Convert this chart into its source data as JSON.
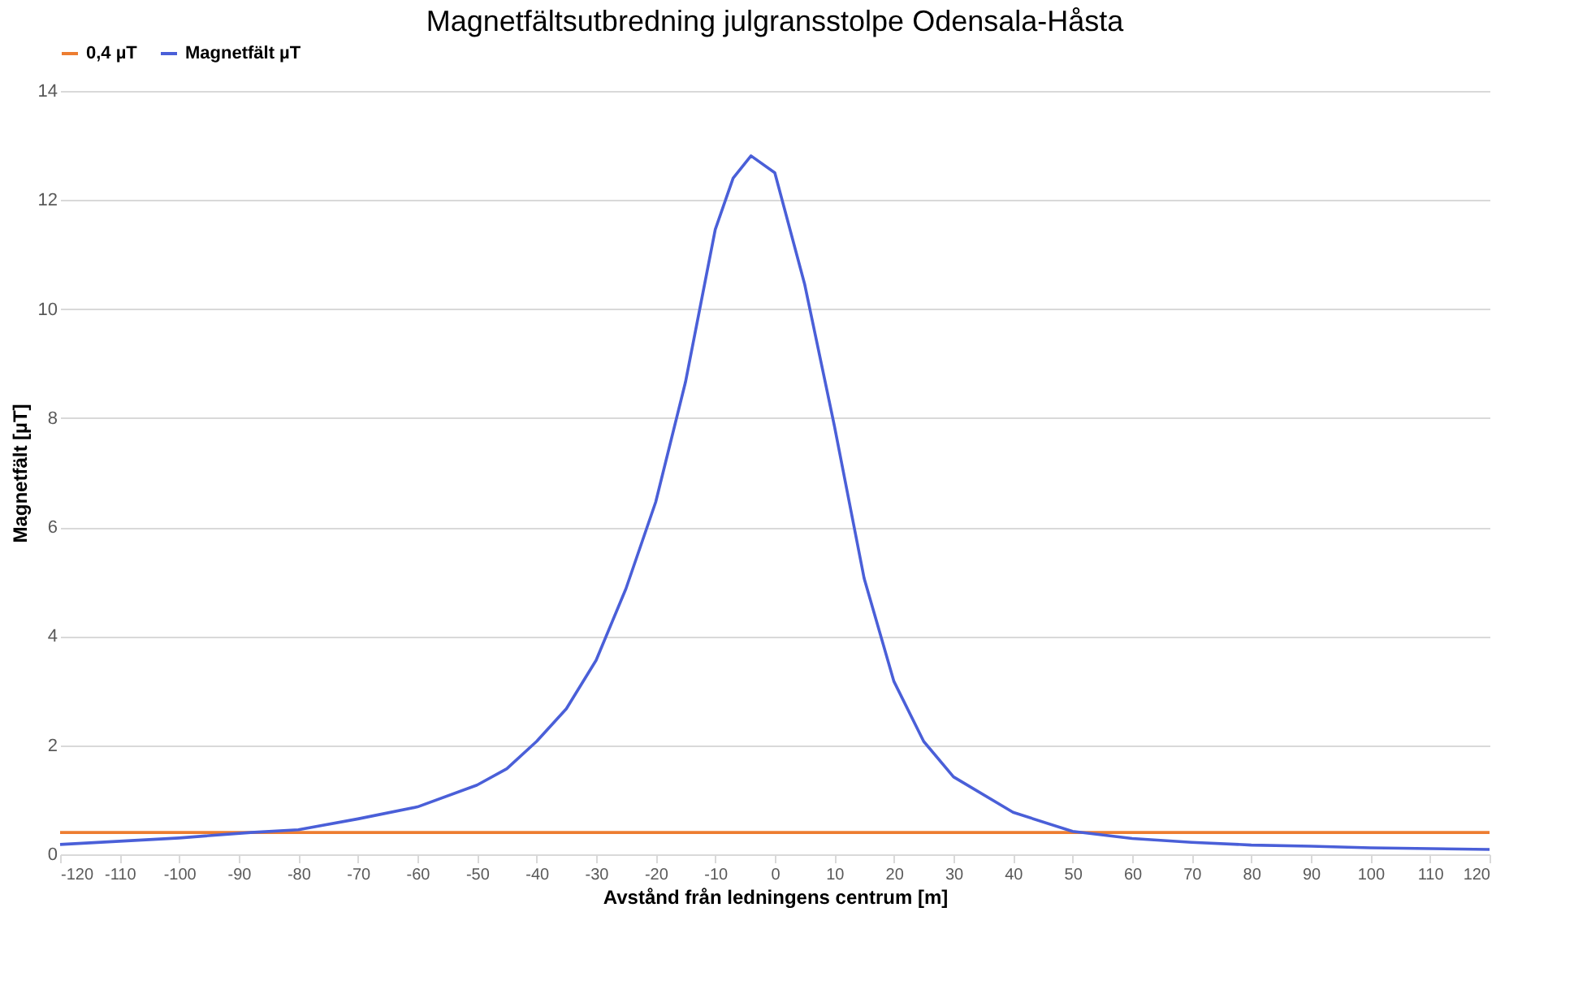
{
  "chart_data": {
    "type": "line",
    "title": "Magnetfältsutbredning julgransstolpe Odensala-Håsta",
    "xlabel": "Avstånd från ledningens centrum [m]",
    "ylabel": "Magnetfält [µT]",
    "series": [
      {
        "name": "0,4 µT",
        "color": "#ed7d31",
        "x": [
          -120,
          120
        ],
        "values": [
          0.4,
          0.4
        ]
      },
      {
        "name": "Magnetfält µT",
        "color": "#4a5fd8",
        "x": [
          -120,
          -100,
          -88,
          -80,
          -70,
          -60,
          -50,
          -45,
          -40,
          -35,
          -30,
          -25,
          -20,
          -15,
          -10,
          -7,
          -4,
          0,
          5,
          10,
          15,
          20,
          25,
          30,
          40,
          50,
          60,
          70,
          80,
          90,
          100,
          120
        ],
        "values": [
          0.18,
          0.3,
          0.4,
          0.45,
          0.65,
          0.87,
          1.27,
          1.57,
          2.07,
          2.67,
          3.56,
          4.87,
          6.46,
          8.66,
          11.46,
          12.4,
          12.81,
          12.5,
          10.46,
          7.86,
          5.06,
          3.17,
          2.07,
          1.42,
          0.77,
          0.42,
          0.29,
          0.22,
          0.17,
          0.15,
          0.12,
          0.09
        ]
      }
    ],
    "xlim": [
      -120,
      120
    ],
    "xticks": [
      -120,
      -110,
      -100,
      -90,
      -80,
      -70,
      -60,
      -50,
      -40,
      -30,
      -20,
      -10,
      0,
      10,
      20,
      30,
      40,
      50,
      60,
      70,
      80,
      90,
      100,
      110,
      120
    ],
    "ylim": [
      0,
      14
    ],
    "yticks": [
      0,
      2,
      4,
      6,
      8,
      10,
      12,
      14
    ],
    "grid": "y",
    "legend": "top",
    "marker": "none",
    "line_style": "solid"
  }
}
